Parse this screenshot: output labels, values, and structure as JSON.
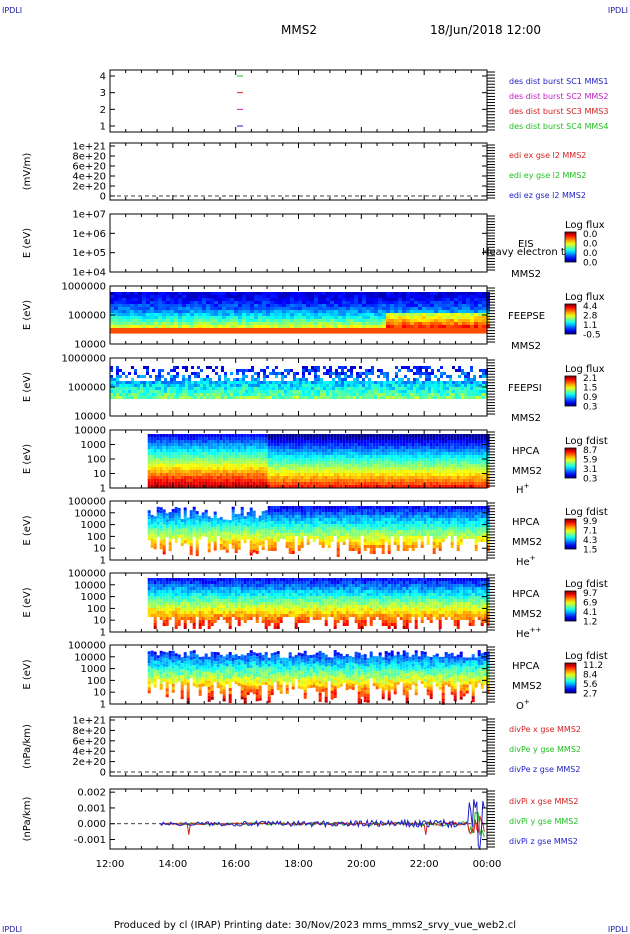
{
  "corner_mark": "IPDLI",
  "header": {
    "spacecraft": "MMS2",
    "datetime": "18/Jun/2018 12:00"
  },
  "footer": "Produced by cl (IRAP)   Printing date: 30/Nov/2023   mms_mms2_srvy_vue_web2.cl",
  "colors": {
    "axis": "#000000",
    "red": "#d42020",
    "green": "#20c020",
    "blue": "#1e1ec8",
    "magenta": "#c020c0"
  },
  "chart_data": {
    "type": "heatmap",
    "time_axis": {
      "range": [
        "12:00",
        "00:00"
      ],
      "ticks": [
        "12:00",
        "14:00",
        "16:00",
        "18:00",
        "20:00",
        "22:00",
        "00:00"
      ]
    },
    "panels": [
      {
        "id": "dist",
        "type": "line",
        "ylabel": "",
        "yticks": [
          "4",
          "3",
          "2",
          "1"
        ],
        "legend": [
          {
            "text": "des dist burst SC1 MMS1",
            "color": "#1e1ec8"
          },
          {
            "text": "des dist burst SC2 MMS2",
            "color": "#c020c0"
          },
          {
            "text": "des dist burst SC3 MMS3",
            "color": "#d42020"
          },
          {
            "text": "des dist burst SC4 MMS4",
            "color": "#20c020"
          }
        ]
      },
      {
        "id": "edi",
        "type": "line",
        "ylabel": "(mV/m)",
        "yticks": [
          "1e+21",
          "8e+20",
          "6e+20",
          "4e+20",
          "2e+20",
          "0"
        ],
        "legend": [
          {
            "text": "edi ex gse l2 MMS2",
            "color": "#d42020"
          },
          {
            "text": "edi ey gse l2 MMS2",
            "color": "#20c020"
          },
          {
            "text": "edi ez gse l2 MMS2",
            "color": "#1e1ec8"
          }
        ]
      },
      {
        "id": "eis",
        "type": "heatmap",
        "ylabel": "E (eV)",
        "yticks": [
          "1e+07",
          "1e+06",
          "1e+05",
          "1e+04"
        ],
        "labels": [
          "EIS",
          "MMS2"
        ],
        "overlay": "Heavy electron to",
        "cbar_title": "Log flux",
        "cbar": [
          "0.0",
          "0.0",
          "0.0",
          "0.0"
        ]
      },
      {
        "id": "feepse",
        "type": "heatmap",
        "ylabel": "E (eV)",
        "yticks": [
          "1000000",
          "100000",
          "10000"
        ],
        "labels": [
          "FEEPSE",
          "MMS2"
        ],
        "cbar_title": "Log flux",
        "cbar": [
          "4.4",
          "2.8",
          "1.1",
          "-0.5"
        ]
      },
      {
        "id": "feepsi",
        "type": "heatmap",
        "ylabel": "E (eV)",
        "yticks": [
          "1000000",
          "100000",
          "10000"
        ],
        "labels": [
          "FEEPSI",
          "MMS2"
        ],
        "cbar_title": "Log flux",
        "cbar": [
          "2.1",
          "1.5",
          "0.9",
          "0.3"
        ]
      },
      {
        "id": "hpca_h",
        "type": "heatmap",
        "ylabel": "E (eV)",
        "yticks": [
          "10000",
          "1000",
          "100",
          "10",
          "1"
        ],
        "labels": [
          "HPCA",
          "MMS2"
        ],
        "species": "H",
        "species_sup": "+",
        "cbar_title": "Log fdist",
        "cbar": [
          "8.7",
          "5.9",
          "3.1",
          "0.3"
        ]
      },
      {
        "id": "hpca_he",
        "type": "heatmap",
        "ylabel": "E (eV)",
        "yticks": [
          "100000",
          "10000",
          "1000",
          "100",
          "10",
          "1"
        ],
        "labels": [
          "HPCA",
          "MMS2"
        ],
        "species": "He",
        "species_sup": "+",
        "cbar_title": "Log fdist",
        "cbar": [
          "9.9",
          "7.1",
          "4.3",
          "1.5"
        ]
      },
      {
        "id": "hpca_hepp",
        "type": "heatmap",
        "ylabel": "E (eV)",
        "yticks": [
          "100000",
          "10000",
          "1000",
          "100",
          "10",
          "1"
        ],
        "labels": [
          "HPCA",
          "MMS2"
        ],
        "species": "He",
        "species_sup": "++",
        "cbar_title": "Log fdist",
        "cbar": [
          "9.7",
          "6.9",
          "4.1",
          "1.2"
        ]
      },
      {
        "id": "hpca_o",
        "type": "heatmap",
        "ylabel": "E (eV)",
        "yticks": [
          "100000",
          "10000",
          "1000",
          "100",
          "10",
          "1"
        ],
        "labels": [
          "HPCA",
          "MMS2"
        ],
        "species": "O",
        "species_sup": "+",
        "cbar_title": "Log fdist",
        "cbar": [
          "11.2",
          "8.4",
          "5.6",
          "2.7"
        ]
      },
      {
        "id": "divpe",
        "type": "line",
        "ylabel": "(nPa/km)",
        "yticks": [
          "1e+21",
          "8e+20",
          "6e+20",
          "4e+20",
          "2e+20",
          "0"
        ],
        "legend": [
          {
            "text": "divPe x gse MMS2",
            "color": "#d42020"
          },
          {
            "text": "divPe y gse MMS2",
            "color": "#20c020"
          },
          {
            "text": "divPe z gse MMS2",
            "color": "#1e1ec8"
          }
        ]
      },
      {
        "id": "divpi",
        "type": "line",
        "ylabel": "(nPa/km)",
        "yticks": [
          "0.002",
          "0.001",
          "0.000",
          "-0.001"
        ],
        "ylim": [
          -0.0016,
          0.0022
        ],
        "legend": [
          {
            "text": "divPi x gse MMS2",
            "color": "#d42020"
          },
          {
            "text": "divPi y gse MMS2",
            "color": "#20c020"
          },
          {
            "text": "divPi z gse MMS2",
            "color": "#1e1ec8"
          }
        ]
      }
    ]
  }
}
